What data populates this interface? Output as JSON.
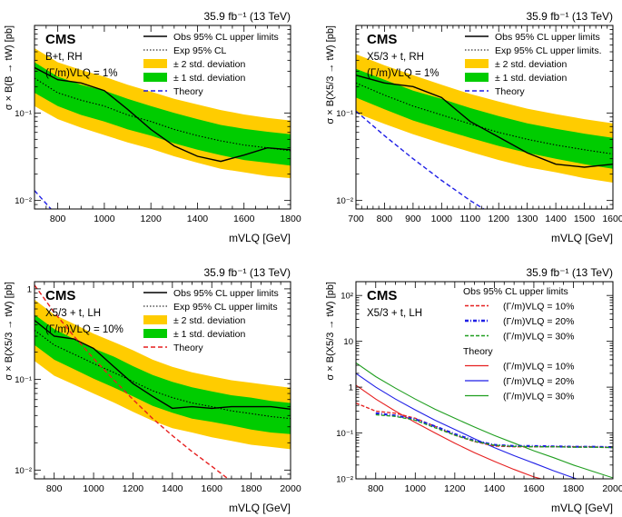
{
  "figure": {
    "description_title": "CMS VLQ cross section upper limits",
    "colors": {
      "band2sigma": "#ffcc00",
      "band1sigma": "#00cc00",
      "observed": "#000000",
      "expected": "#000000",
      "theory_blue": "#1f1fe6",
      "theory_red": "#e61f1f",
      "width10": "#e61f1f",
      "width20": "#1f1fe6",
      "width30": "#1f9e1f"
    }
  },
  "chart_data": [
    {
      "id": "top-left",
      "type": "line",
      "lumi_label": "35.9 fb⁻¹ (13 TeV)",
      "cms_label": "CMS",
      "process_label": "B+t, RH",
      "width_label": "(Γ/m)VLQ = 1%",
      "ylabel": "σ × B(B → tW) [pb]",
      "xlabel": "mVLQ [GeV]",
      "xlim": [
        700,
        1800
      ],
      "ylim": [
        0.008,
        1.0
      ],
      "xticks": [
        800,
        1000,
        1200,
        1400,
        1600,
        1800
      ],
      "yticks": [
        {
          "v": 0.01,
          "label": "10⁻²"
        },
        {
          "v": 0.1,
          "label": "10⁻¹"
        }
      ],
      "legend": [
        "Obs 95% CL upper limits",
        "Exp 95% CL",
        "± 2 std. deviation",
        "± 1 std. deviation",
        "Theory"
      ],
      "masses": [
        700,
        800,
        900,
        1000,
        1100,
        1200,
        1300,
        1400,
        1500,
        1600,
        1700,
        1800
      ],
      "obs": [
        0.33,
        0.24,
        0.22,
        0.18,
        0.11,
        0.065,
        0.042,
        0.032,
        0.028,
        0.033,
        0.04,
        0.038
      ],
      "exp": [
        0.25,
        0.17,
        0.14,
        0.12,
        0.095,
        0.08,
        0.065,
        0.055,
        0.048,
        0.043,
        0.04,
        0.037
      ],
      "band1": {
        "low": [
          0.17,
          0.12,
          0.095,
          0.08,
          0.065,
          0.055,
          0.045,
          0.038,
          0.033,
          0.029,
          0.027,
          0.025
        ],
        "high": [
          0.38,
          0.26,
          0.21,
          0.18,
          0.145,
          0.12,
          0.1,
          0.085,
          0.073,
          0.066,
          0.061,
          0.057
        ]
      },
      "band2": {
        "low": [
          0.12,
          0.085,
          0.068,
          0.056,
          0.046,
          0.039,
          0.032,
          0.027,
          0.023,
          0.021,
          0.019,
          0.018
        ],
        "high": [
          0.55,
          0.38,
          0.31,
          0.26,
          0.21,
          0.175,
          0.145,
          0.125,
          0.108,
          0.096,
          0.088,
          0.082
        ]
      },
      "theory": [
        {
          "m": 700,
          "v": 0.013,
          "color": "blue"
        },
        {
          "m": 780,
          "v": 0.0075,
          "color": "blue"
        }
      ]
    },
    {
      "id": "top-right",
      "type": "line",
      "lumi_label": "35.9 fb⁻¹ (13 TeV)",
      "cms_label": "CMS",
      "process_label": "X5/3 + t, RH",
      "width_label": "(Γ/m)VLQ = 1%",
      "ylabel": "σ × B(X5/3 → tW) [pb]",
      "xlabel": "mVLQ [GeV]",
      "xlim": [
        700,
        1600
      ],
      "ylim": [
        0.008,
        1.0
      ],
      "xticks": [
        700,
        800,
        900,
        1000,
        1100,
        1200,
        1300,
        1400,
        1500,
        1600
      ],
      "yticks": [
        {
          "v": 0.01,
          "label": "10⁻²"
        },
        {
          "v": 0.1,
          "label": "10⁻¹"
        }
      ],
      "legend": [
        "Obs 95% CL upper limits",
        "Exp 95% CL upper limits.",
        "± 2 std. deviation",
        "± 1 std. deviation",
        "Theory"
      ],
      "masses": [
        700,
        800,
        900,
        1000,
        1100,
        1200,
        1300,
        1400,
        1500,
        1600
      ],
      "obs": [
        0.27,
        0.22,
        0.2,
        0.15,
        0.08,
        0.053,
        0.035,
        0.026,
        0.024,
        0.026
      ],
      "exp": [
        0.22,
        0.16,
        0.12,
        0.095,
        0.075,
        0.06,
        0.05,
        0.043,
        0.038,
        0.034
      ],
      "band1": {
        "low": [
          0.15,
          0.11,
          0.082,
          0.065,
          0.052,
          0.042,
          0.035,
          0.03,
          0.026,
          0.023
        ],
        "high": [
          0.32,
          0.24,
          0.18,
          0.145,
          0.114,
          0.092,
          0.076,
          0.066,
          0.058,
          0.052
        ]
      },
      "band2": {
        "low": [
          0.1,
          0.075,
          0.057,
          0.045,
          0.036,
          0.029,
          0.024,
          0.021,
          0.018,
          0.016
        ],
        "high": [
          0.47,
          0.35,
          0.27,
          0.21,
          0.165,
          0.135,
          0.112,
          0.097,
          0.085,
          0.076
        ]
      },
      "theory": [
        {
          "m": 700,
          "v": 0.105,
          "color": "blue"
        },
        {
          "m": 800,
          "v": 0.055,
          "color": "blue"
        },
        {
          "m": 900,
          "v": 0.03,
          "color": "blue"
        },
        {
          "m": 1000,
          "v": 0.017,
          "color": "blue"
        },
        {
          "m": 1100,
          "v": 0.01,
          "color": "blue"
        },
        {
          "m": 1170,
          "v": 0.0072,
          "color": "blue"
        }
      ]
    },
    {
      "id": "bottom-left",
      "type": "line",
      "lumi_label": "35.9 fb⁻¹ (13 TeV)",
      "cms_label": "CMS",
      "process_label": "X5/3 + t, LH",
      "width_label": "(Γ/m)VLQ = 10%",
      "ylabel": "σ × B(X5/3 → tW) [pb]",
      "xlabel": "mVLQ [GeV]",
      "xlim": [
        700,
        2000
      ],
      "ylim": [
        0.008,
        1.2
      ],
      "xticks": [
        800,
        1000,
        1200,
        1400,
        1600,
        1800,
        2000
      ],
      "yticks": [
        {
          "v": 0.01,
          "label": "10⁻²"
        },
        {
          "v": 0.1,
          "label": "10⁻¹"
        },
        {
          "v": 1,
          "label": "1"
        }
      ],
      "legend": [
        "Obs 95% CL upper limits",
        "Exp 95% CL upper limits",
        "± 2 std. deviation",
        "± 1 std. deviation",
        "Theory"
      ],
      "masses": [
        700,
        800,
        900,
        1000,
        1100,
        1200,
        1300,
        1400,
        1500,
        1600,
        1700,
        1800,
        1900,
        2000
      ],
      "obs": [
        0.45,
        0.3,
        0.28,
        0.22,
        0.14,
        0.09,
        0.065,
        0.048,
        0.05,
        0.048,
        0.05,
        0.05,
        0.05,
        0.047
      ],
      "exp": [
        0.35,
        0.24,
        0.19,
        0.15,
        0.12,
        0.095,
        0.075,
        0.063,
        0.055,
        0.05,
        0.045,
        0.042,
        0.039,
        0.037
      ],
      "band1": {
        "low": [
          0.24,
          0.165,
          0.13,
          0.102,
          0.082,
          0.065,
          0.051,
          0.043,
          0.037,
          0.034,
          0.031,
          0.028,
          0.026,
          0.025
        ],
        "high": [
          0.52,
          0.36,
          0.28,
          0.22,
          0.18,
          0.14,
          0.112,
          0.094,
          0.082,
          0.074,
          0.067,
          0.063,
          0.058,
          0.055
        ]
      },
      "band2": {
        "low": [
          0.16,
          0.11,
          0.088,
          0.07,
          0.056,
          0.044,
          0.035,
          0.029,
          0.026,
          0.023,
          0.021,
          0.019,
          0.018,
          0.017
        ],
        "high": [
          0.76,
          0.52,
          0.41,
          0.32,
          0.26,
          0.21,
          0.165,
          0.138,
          0.12,
          0.108,
          0.098,
          0.092,
          0.086,
          0.081
        ]
      },
      "theory": [
        {
          "m": 700,
          "v": 1.1,
          "color": "red"
        },
        {
          "m": 800,
          "v": 0.55,
          "color": "red"
        },
        {
          "m": 900,
          "v": 0.3,
          "color": "red"
        },
        {
          "m": 1000,
          "v": 0.17,
          "color": "red"
        },
        {
          "m": 1100,
          "v": 0.1,
          "color": "red"
        },
        {
          "m": 1200,
          "v": 0.06,
          "color": "red"
        },
        {
          "m": 1300,
          "v": 0.037,
          "color": "red"
        },
        {
          "m": 1400,
          "v": 0.024,
          "color": "red"
        },
        {
          "m": 1500,
          "v": 0.016,
          "color": "red"
        },
        {
          "m": 1600,
          "v": 0.011,
          "color": "red"
        },
        {
          "m": 1700,
          "v": 0.0075,
          "color": "red"
        }
      ]
    },
    {
      "id": "bottom-right",
      "type": "line",
      "lumi_label": "35.9 fb⁻¹ (13 TeV)",
      "cms_label": "CMS",
      "process_label": "X5/3 + t, LH",
      "ylabel": "σ × B(X5/3 → tW) [pb]",
      "xlabel": "mVLQ [GeV]",
      "xlim": [
        700,
        2000
      ],
      "ylim": [
        0.01,
        200
      ],
      "xticks": [
        800,
        1000,
        1200,
        1400,
        1600,
        1800,
        2000
      ],
      "yticks": [
        {
          "v": 0.01,
          "label": "10⁻²"
        },
        {
          "v": 0.1,
          "label": "10⁻¹"
        },
        {
          "v": 1,
          "label": "1"
        },
        {
          "v": 10,
          "label": "10"
        },
        {
          "v": 100,
          "label": "10²"
        }
      ],
      "legend_obs_title": "Obs 95% CL upper limits",
      "legend_theory_title": "Theory",
      "legend_widths": [
        "(Γ/m)VLQ = 10%",
        "(Γ/m)VLQ = 20%",
        "(Γ/m)VLQ = 30%"
      ],
      "obs_series": [
        {
          "name": "(Γ/m)VLQ = 10%",
          "style": "dashed",
          "color": "red",
          "masses": [
            700,
            800,
            900,
            1000,
            1100,
            1200,
            1300,
            1400,
            1500,
            1600,
            1700,
            1800,
            1900,
            2000
          ],
          "values": [
            0.45,
            0.3,
            0.27,
            0.21,
            0.14,
            0.09,
            0.065,
            0.052,
            0.05,
            0.05,
            0.05,
            0.05,
            0.05,
            0.048
          ]
        },
        {
          "name": "(Γ/m)VLQ = 20%",
          "style": "dashdot",
          "color": "blue",
          "masses": [
            800,
            900,
            1000,
            1100,
            1200,
            1300,
            1400,
            1500,
            1600,
            1700,
            1800,
            1900,
            2000
          ],
          "values": [
            0.27,
            0.24,
            0.2,
            0.14,
            0.095,
            0.068,
            0.055,
            0.052,
            0.052,
            0.051,
            0.05,
            0.05,
            0.049
          ]
        },
        {
          "name": "(Γ/m)VLQ = 30%",
          "style": "dashed",
          "color": "green",
          "masses": [
            800,
            900,
            1000,
            1100,
            1200,
            1300,
            1400,
            1500,
            1600,
            1700,
            1800,
            1900,
            2000
          ],
          "values": [
            0.25,
            0.23,
            0.19,
            0.13,
            0.09,
            0.066,
            0.054,
            0.051,
            0.05,
            0.05,
            0.049,
            0.049,
            0.048
          ]
        }
      ],
      "theory_series": [
        {
          "name": "(Γ/m)VLQ = 10%",
          "color": "red",
          "masses": [
            700,
            800,
            900,
            1000,
            1100,
            1200,
            1300,
            1400,
            1500,
            1600,
            1700
          ],
          "values": [
            1.1,
            0.55,
            0.3,
            0.17,
            0.1,
            0.06,
            0.037,
            0.024,
            0.016,
            0.011,
            0.0085
          ]
        },
        {
          "name": "(Γ/m)VLQ = 20%",
          "color": "blue",
          "masses": [
            700,
            800,
            900,
            1000,
            1100,
            1200,
            1300,
            1400,
            1500,
            1600,
            1700,
            1800,
            1850
          ],
          "values": [
            2.0,
            1.0,
            0.55,
            0.32,
            0.19,
            0.12,
            0.075,
            0.048,
            0.032,
            0.022,
            0.015,
            0.0105,
            0.009
          ]
        },
        {
          "name": "(Γ/m)VLQ = 30%",
          "color": "green",
          "masses": [
            700,
            800,
            900,
            1000,
            1100,
            1200,
            1300,
            1400,
            1500,
            1600,
            1700,
            1800,
            1900,
            2000
          ],
          "values": [
            3.4,
            1.7,
            0.95,
            0.55,
            0.33,
            0.21,
            0.135,
            0.088,
            0.06,
            0.041,
            0.029,
            0.02,
            0.0145,
            0.0105
          ]
        }
      ]
    }
  ]
}
